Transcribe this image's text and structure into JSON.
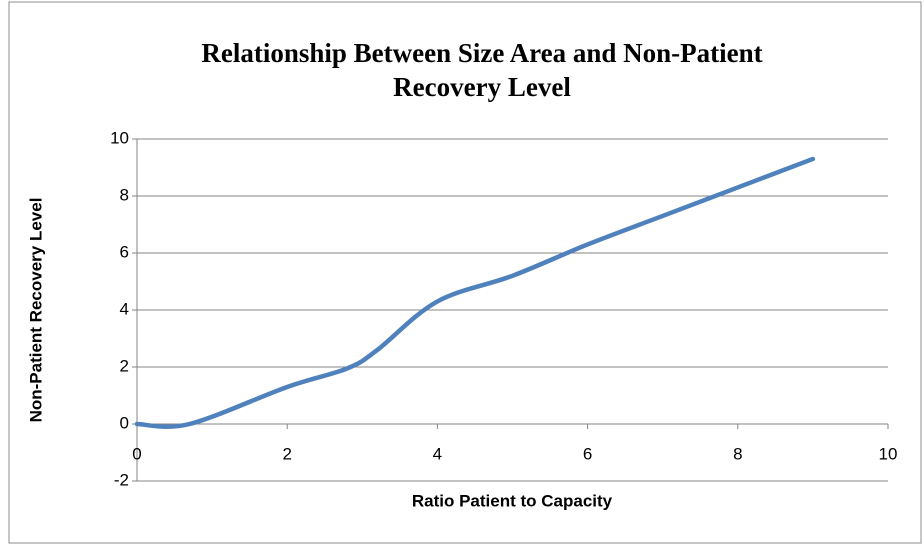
{
  "chart_data": {
    "type": "line",
    "title": "Relationship Between Size Area and Non-Patient Recovery Level",
    "x_label": "Ratio Patient to Capacity",
    "y_label": "Non-Patient Recovery Level",
    "x": [
      0,
      0.7,
      2,
      2.8,
      3.2,
      4,
      5,
      6,
      7,
      8,
      9
    ],
    "series": [
      {
        "name": "Non-Patient Recovery Level",
        "color": "#4f81bd",
        "values": [
          0,
          0,
          1.3,
          1.95,
          2.6,
          4.3,
          5.2,
          6.3,
          7.3,
          8.3,
          9.3
        ]
      }
    ],
    "xlim": [
      0,
      10
    ],
    "xticks": [
      0,
      2,
      4,
      6,
      8,
      10
    ],
    "ylim": [
      -2,
      10
    ],
    "yticks": [
      -2,
      0,
      2,
      4,
      6,
      8,
      10
    ],
    "grid": true,
    "smooth": true
  }
}
